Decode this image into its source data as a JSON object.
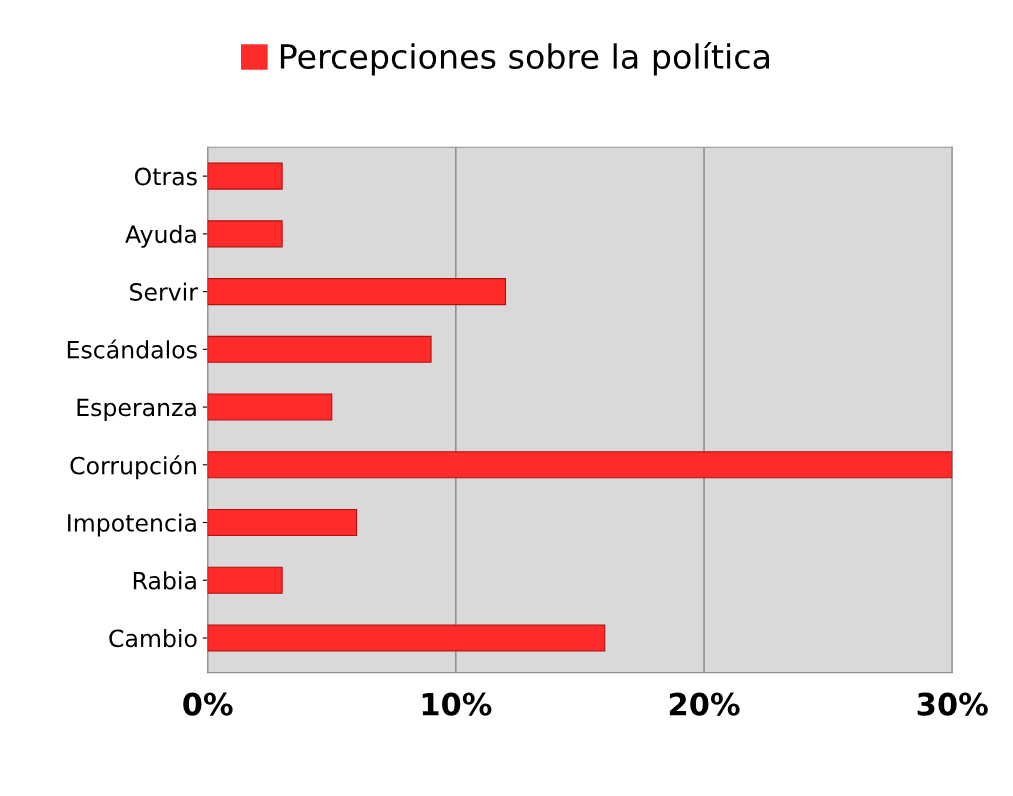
{
  "chart_data": {
    "type": "bar",
    "orientation": "horizontal",
    "categories": [
      "Otras",
      "Ayuda",
      "Servir",
      "Escándalos",
      "Esperanza",
      "Corrupción",
      "Impotencia",
      "Rabia",
      "Cambio"
    ],
    "series": [
      {
        "name": "Percepciones sobre la política",
        "color": "#ff2a2a",
        "values": [
          3,
          3,
          12,
          9,
          5,
          30,
          6,
          3,
          16
        ]
      }
    ],
    "xlim": [
      0,
      30
    ],
    "xticks": [
      {
        "value": 0,
        "label": "0%"
      },
      {
        "value": 10,
        "label": "10%"
      },
      {
        "value": 20,
        "label": "20%"
      },
      {
        "value": 30,
        "label": "30%"
      }
    ],
    "grid": "x",
    "legend": "top"
  }
}
